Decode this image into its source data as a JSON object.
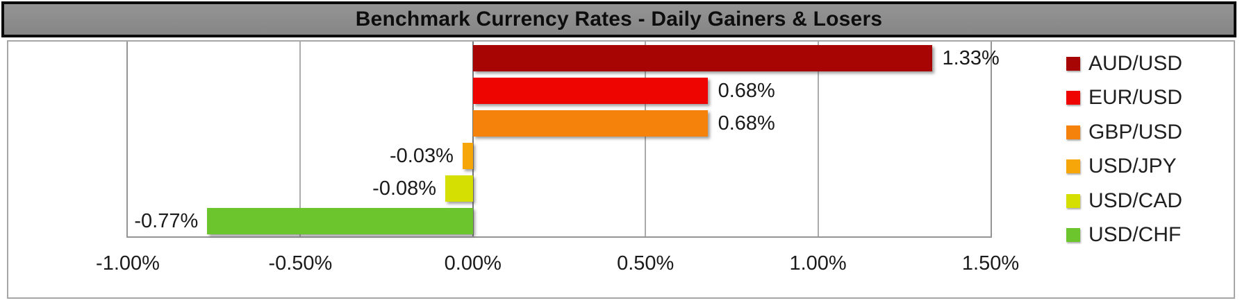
{
  "title": "Benchmark Currency Rates - Daily Gainers & Losers",
  "chart_data": {
    "type": "bar",
    "orientation": "horizontal",
    "title": "Benchmark Currency Rates - Daily Gainers & Losers",
    "categories": [
      "AUD/USD",
      "EUR/USD",
      "GBP/USD",
      "USD/JPY",
      "USD/CAD",
      "USD/CHF"
    ],
    "values": [
      1.33,
      0.68,
      0.68,
      -0.03,
      -0.08,
      -0.77
    ],
    "data_labels": [
      "1.33%",
      "0.68%",
      "0.68%",
      "-0.03%",
      "-0.08%",
      "-0.77%"
    ],
    "colors": [
      "#A70404",
      "#EE0400",
      "#F5820A",
      "#F6A609",
      "#D6DF02",
      "#6CC52D"
    ],
    "x_ticks": [
      "-1.00%",
      "-0.50%",
      "0.00%",
      "0.50%",
      "1.00%",
      "1.50%"
    ],
    "x_tick_values": [
      -1.0,
      -0.5,
      0.0,
      0.5,
      1.0,
      1.5
    ],
    "xlim": [
      -1.0,
      1.5
    ],
    "xlabel": "",
    "ylabel": "",
    "grid": true,
    "legend_position": "right",
    "legend_entries": [
      "AUD/USD",
      "EUR/USD",
      "GBP/USD",
      "USD/JPY",
      "USD/CAD",
      "USD/CHF"
    ]
  },
  "style": {
    "title_background": "#8B8B8B",
    "title_border": "#0A0A0A",
    "plot_border": "#949494",
    "grid_color": "#ABABAB",
    "zero_line_color": "#787878"
  }
}
